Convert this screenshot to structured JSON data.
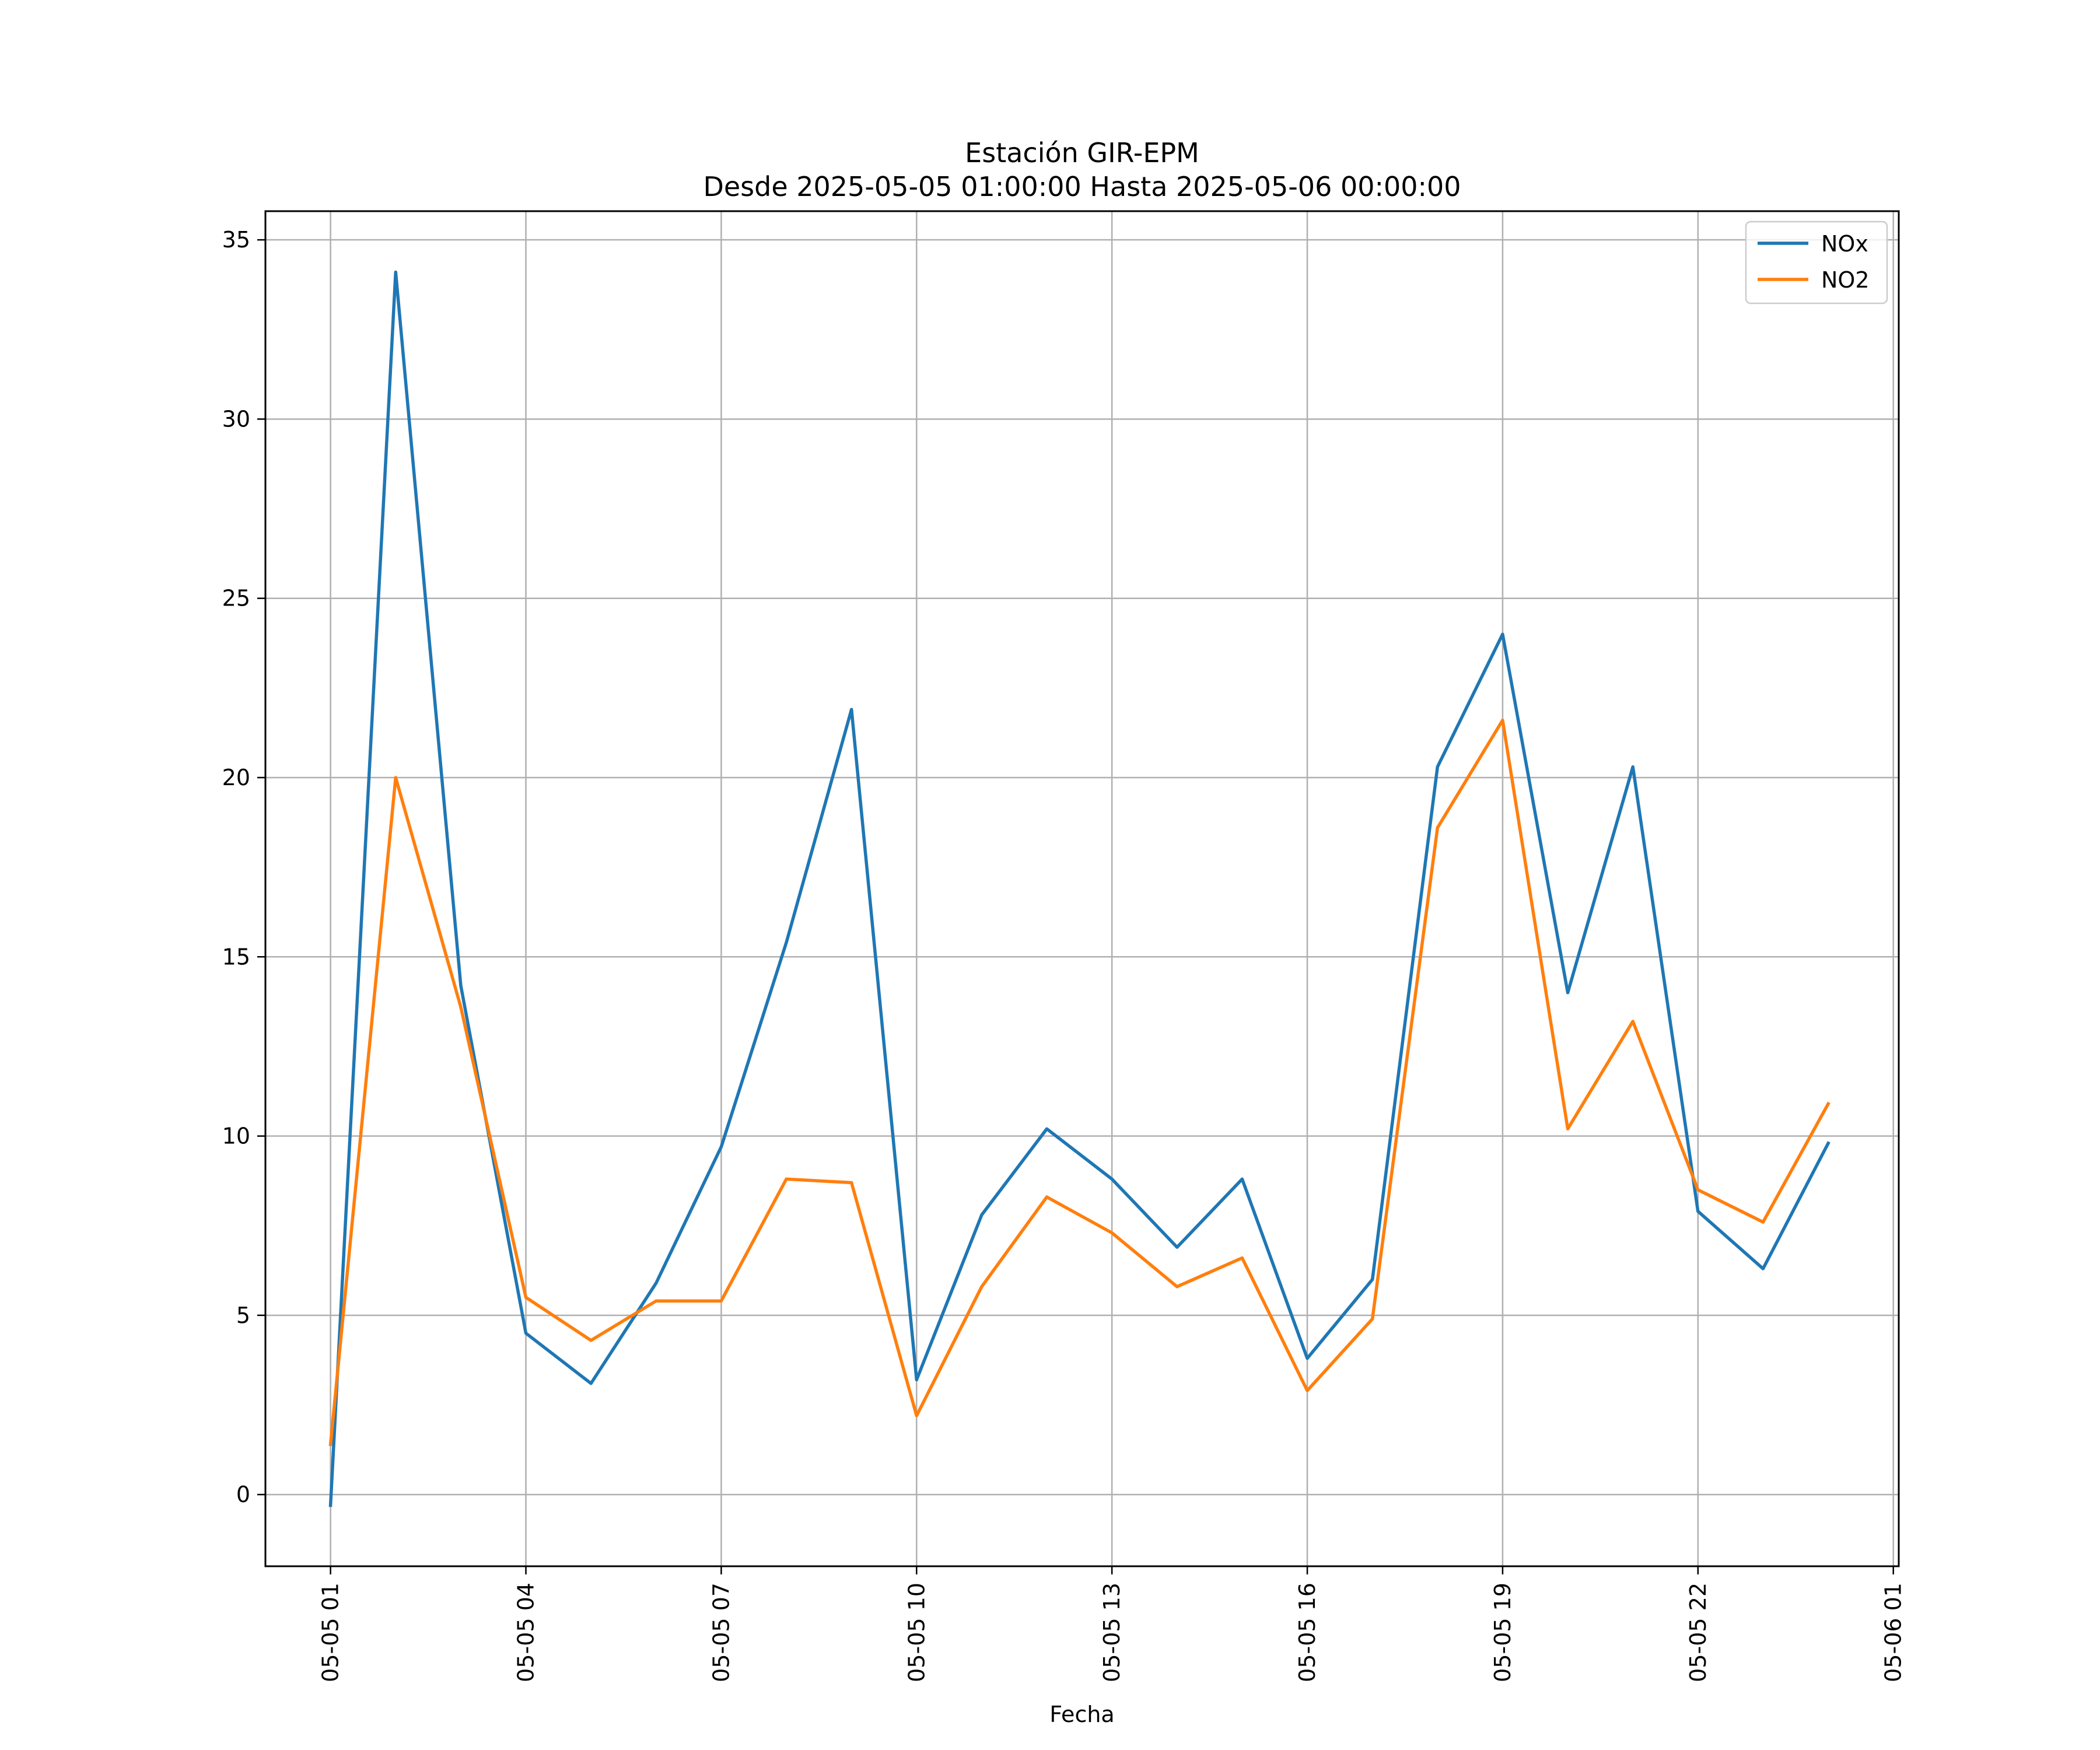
{
  "chart_data": {
    "type": "line",
    "title": "Estación GIR-EPM",
    "subtitle": "Desde 2025-05-05 01:00:00 Hasta 2025-05-06 00:00:00",
    "xlabel": "Fecha",
    "ylabel": "",
    "x": [
      "2025-05-05 01:00",
      "2025-05-05 02:00",
      "2025-05-05 03:00",
      "2025-05-05 04:00",
      "2025-05-05 05:00",
      "2025-05-05 06:00",
      "2025-05-05 07:00",
      "2025-05-05 08:00",
      "2025-05-05 09:00",
      "2025-05-05 10:00",
      "2025-05-05 11:00",
      "2025-05-05 12:00",
      "2025-05-05 13:00",
      "2025-05-05 14:00",
      "2025-05-05 15:00",
      "2025-05-05 16:00",
      "2025-05-05 17:00",
      "2025-05-05 18:00",
      "2025-05-05 19:00",
      "2025-05-05 20:00",
      "2025-05-05 21:00",
      "2025-05-05 22:00",
      "2025-05-05 23:00",
      "2025-05-06 00:00"
    ],
    "series": [
      {
        "name": "NOx",
        "color": "#1f77b4",
        "values": [
          -0.3,
          34.1,
          14.2,
          4.5,
          3.1,
          5.9,
          9.7,
          15.4,
          21.9,
          3.2,
          7.8,
          10.2,
          8.8,
          6.9,
          8.8,
          3.8,
          6.0,
          20.3,
          24.0,
          14.0,
          20.3,
          7.9,
          6.3,
          9.8
        ]
      },
      {
        "name": "NO2",
        "color": "#ff7f0e",
        "values": [
          1.4,
          20.0,
          13.6,
          5.5,
          4.3,
          5.4,
          5.4,
          8.8,
          8.7,
          2.2,
          5.8,
          8.3,
          7.3,
          5.8,
          6.6,
          2.9,
          4.9,
          18.6,
          21.6,
          10.2,
          13.2,
          8.5,
          7.6,
          10.9
        ]
      }
    ],
    "xticks": [
      "05-05 01",
      "05-05 04",
      "05-05 07",
      "05-05 10",
      "05-05 13",
      "05-05 16",
      "05-05 19",
      "05-05 22",
      "05-06 01"
    ],
    "yticks": [
      0,
      5,
      10,
      15,
      20,
      25,
      30,
      35
    ],
    "ylim": [
      -2.0,
      35.8
    ],
    "xlim": [
      "2025-05-05 00:00",
      "2025-05-06 01:05"
    ],
    "grid": true,
    "legend": "top-right"
  }
}
